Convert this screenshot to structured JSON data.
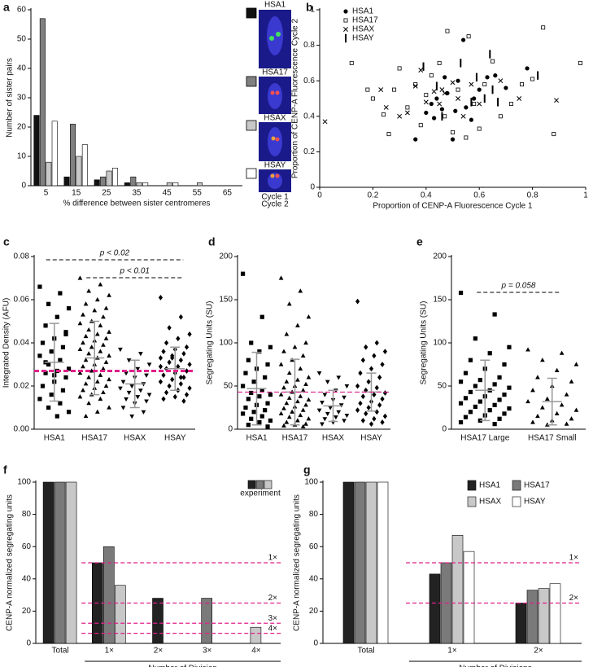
{
  "chart_data": [
    {
      "panel": "a",
      "type": "bar",
      "ylabel": "Number of sister pairs",
      "xlabel": "% difference between sister centromeres",
      "categories": [
        "5",
        "15",
        "25",
        "35",
        "45",
        "55",
        "65"
      ],
      "series": [
        {
          "name": "HSA1",
          "color": "#111111",
          "values": [
            24,
            3,
            2,
            1,
            0,
            0,
            0
          ]
        },
        {
          "name": "HSA17",
          "color": "#808080",
          "values": [
            57,
            21,
            3,
            3,
            0,
            0,
            0
          ]
        },
        {
          "name": "HSAX",
          "color": "#c8c8c8",
          "values": [
            8,
            10,
            5,
            1,
            1,
            1,
            0
          ]
        },
        {
          "name": "HSAY",
          "color": "#ffffff",
          "values": [
            22,
            14,
            6,
            1,
            1,
            0,
            0
          ]
        }
      ],
      "ylim": [
        0,
        60
      ],
      "yticks": [
        0,
        10,
        20,
        30,
        40,
        50,
        60
      ],
      "image_captions": [
        "Cycle 1",
        "Cycle 2"
      ],
      "caption_colors": [
        "#e03030",
        "#30b030"
      ]
    },
    {
      "panel": "b",
      "type": "scatter",
      "xlabel": "Proportion of CENP-A Fluorescence Cycle 1",
      "ylabel": "Proportion of CENP-A Fluorescence Cycle 2",
      "xlim": [
        0,
        1
      ],
      "ylim": [
        0,
        1
      ],
      "xticks": [
        0,
        0.2,
        0.4,
        0.6,
        0.8,
        1
      ],
      "yticks": [
        0,
        0.2,
        0.4,
        0.6,
        0.8,
        1
      ],
      "series": [
        {
          "name": "HSA1",
          "marker": "circle",
          "color": "#000000",
          "x": [
            0.36,
            0.4,
            0.42,
            0.44,
            0.46,
            0.48,
            0.5,
            0.52,
            0.54,
            0.55,
            0.57,
            0.6,
            0.63,
            0.66,
            0.7,
            0.78,
            0.47,
            0.43,
            0.58,
            0.51
          ],
          "y": [
            0.27,
            0.42,
            0.47,
            0.5,
            0.44,
            0.53,
            0.27,
            0.6,
            0.83,
            0.45,
            0.38,
            0.55,
            0.62,
            0.63,
            0.56,
            0.67,
            0.62,
            0.39,
            0.5,
            0.43
          ]
        },
        {
          "name": "HSA17",
          "marker": "open-square",
          "color": "#000000",
          "x": [
            0.12,
            0.18,
            0.2,
            0.24,
            0.26,
            0.28,
            0.3,
            0.33,
            0.36,
            0.38,
            0.4,
            0.42,
            0.45,
            0.47,
            0.5,
            0.52,
            0.55,
            0.56,
            0.58,
            0.6,
            0.62,
            0.65,
            0.68,
            0.72,
            0.76,
            0.8,
            0.84,
            0.88,
            0.98,
            0.48
          ],
          "y": [
            0.7,
            0.55,
            0.5,
            0.41,
            0.3,
            0.55,
            0.67,
            0.45,
            0.58,
            0.35,
            0.52,
            0.63,
            0.7,
            0.4,
            0.31,
            0.55,
            0.28,
            0.85,
            0.47,
            0.33,
            0.58,
            0.71,
            0.4,
            0.47,
            0.58,
            0.61,
            0.9,
            0.3,
            0.7,
            0.88
          ]
        },
        {
          "name": "HSAX",
          "marker": "x",
          "color": "#000000",
          "x": [
            0.02,
            0.23,
            0.25,
            0.3,
            0.33,
            0.36,
            0.38,
            0.4,
            0.43,
            0.45,
            0.47,
            0.5,
            0.52,
            0.54,
            0.57,
            0.6,
            0.68,
            0.75,
            0.89,
            0.46
          ],
          "y": [
            0.37,
            0.55,
            0.45,
            0.4,
            0.42,
            0.57,
            0.66,
            0.48,
            0.54,
            0.47,
            0.53,
            0.59,
            0.5,
            0.4,
            0.58,
            0.47,
            0.6,
            0.5,
            0.49,
            0.55
          ]
        },
        {
          "name": "HSAY",
          "marker": "bar",
          "color": "#000000",
          "x": [
            0.39,
            0.46,
            0.53,
            0.57,
            0.59,
            0.62,
            0.65,
            0.67,
            0.64,
            0.82,
            0.44
          ],
          "y": [
            0.68,
            0.4,
            0.7,
            0.48,
            0.62,
            0.5,
            0.55,
            0.48,
            0.75,
            0.63,
            0.57
          ]
        }
      ]
    },
    {
      "panel": "c",
      "type": "dotplot",
      "ylabel": "Integrated Density (AFU)",
      "categories": [
        "HSA1",
        "HSA17",
        "HSAX",
        "HSAY"
      ],
      "markers": [
        "square",
        "triangle",
        "triangle-down",
        "diamond"
      ],
      "values": [
        [
          0.066,
          0.063,
          0.058,
          0.056,
          0.052,
          0.048,
          0.045,
          0.042,
          0.04,
          0.038,
          0.036,
          0.034,
          0.032,
          0.03,
          0.028,
          0.027,
          0.026,
          0.024,
          0.022,
          0.02,
          0.018,
          0.016,
          0.014,
          0.012,
          0.01,
          0.008,
          0.006,
          0.031,
          0.044,
          0.025
        ],
        [
          0.07,
          0.067,
          0.064,
          0.062,
          0.06,
          0.058,
          0.056,
          0.055,
          0.053,
          0.052,
          0.05,
          0.049,
          0.048,
          0.046,
          0.045,
          0.044,
          0.043,
          0.042,
          0.041,
          0.04,
          0.039,
          0.038,
          0.037,
          0.036,
          0.035,
          0.034,
          0.033,
          0.032,
          0.031,
          0.03,
          0.029,
          0.028,
          0.027,
          0.026,
          0.025,
          0.024,
          0.023,
          0.022,
          0.021,
          0.02,
          0.019,
          0.018,
          0.017,
          0.016,
          0.015,
          0.014,
          0.012,
          0.01,
          0.008,
          0.006
        ],
        [
          0.037,
          0.035,
          0.032,
          0.03,
          0.028,
          0.026,
          0.025,
          0.024,
          0.022,
          0.021,
          0.02,
          0.019,
          0.018,
          0.017,
          0.016,
          0.015,
          0.014,
          0.013,
          0.012,
          0.01,
          0.008,
          0.006
        ],
        [
          0.061,
          0.052,
          0.047,
          0.044,
          0.042,
          0.04,
          0.038,
          0.037,
          0.036,
          0.035,
          0.034,
          0.033,
          0.032,
          0.031,
          0.03,
          0.029,
          0.028,
          0.027,
          0.026,
          0.025,
          0.024,
          0.023,
          0.022,
          0.021,
          0.02,
          0.019,
          0.018,
          0.017,
          0.016,
          0.015,
          0.014,
          0.013,
          0.033,
          0.029,
          0.024
        ]
      ],
      "mean": [
        0.031,
        0.033,
        0.021,
        0.028
      ],
      "sd": [
        0.018,
        0.017,
        0.011,
        0.01
      ],
      "ref_line": 0.027,
      "ref_color": "#e0208a",
      "ylim": [
        0,
        0.08
      ],
      "yticks": [
        {
          "value": 0,
          "label": "0.00"
        },
        {
          "value": 0.02,
          "label": "0.02"
        },
        {
          "value": 0.04,
          "label": "0.04"
        },
        {
          "value": 0.06,
          "label": "0.06"
        },
        {
          "value": 0.08,
          "label": "0.08"
        }
      ],
      "annotations": [
        "p < 0.02",
        "p < 0.01"
      ]
    },
    {
      "panel": "d",
      "type": "dotplot",
      "ylabel": "Segregating Units (SU)",
      "categories": [
        "HSA1",
        "HSA17",
        "HSAX",
        "HSAY"
      ],
      "markers": [
        "square",
        "triangle",
        "triangle-down",
        "diamond"
      ],
      "values": [
        [
          180,
          130,
          100,
          95,
          90,
          80,
          75,
          70,
          65,
          60,
          55,
          50,
          45,
          42,
          40,
          38,
          35,
          30,
          28,
          25,
          22,
          20,
          18,
          15,
          12,
          10,
          8,
          5,
          3
        ],
        [
          175,
          160,
          145,
          130,
          120,
          110,
          100,
          95,
          90,
          85,
          80,
          75,
          70,
          65,
          60,
          57,
          55,
          52,
          50,
          48,
          45,
          43,
          40,
          38,
          36,
          34,
          32,
          30,
          28,
          26,
          24,
          22,
          20,
          18,
          16,
          14,
          12,
          10,
          8,
          6,
          5,
          4,
          3
        ],
        [
          65,
          60,
          55,
          50,
          45,
          40,
          37,
          34,
          31,
          28,
          25,
          22,
          20,
          18,
          16,
          14,
          12,
          10,
          8,
          6
        ],
        [
          148,
          100,
          95,
          90,
          85,
          80,
          75,
          70,
          65,
          60,
          55,
          50,
          48,
          45,
          42,
          40,
          38,
          35,
          32,
          30,
          28,
          25,
          22,
          20,
          18,
          15,
          12,
          10,
          8,
          6
        ]
      ],
      "mean": [
        47,
        43,
        27,
        43
      ],
      "sd": [
        42,
        38,
        18,
        22
      ],
      "ref_line": 43,
      "ref_color": "#e0208a",
      "ylim": [
        0,
        200
      ],
      "yticks": [
        0,
        50,
        100,
        150,
        200
      ]
    },
    {
      "panel": "e",
      "type": "dotplot",
      "ylabel": "Segregating Units (SU)",
      "categories": [
        "HSA17 Large",
        "HSA17 Small"
      ],
      "markers": [
        "square",
        "triangle"
      ],
      "values": [
        [
          158,
          133,
          105,
          95,
          88,
          80,
          75,
          70,
          65,
          60,
          57,
          55,
          52,
          50,
          48,
          45,
          43,
          40,
          38,
          36,
          34,
          32,
          30,
          28,
          26,
          24,
          22,
          20,
          18,
          16,
          14,
          12,
          10,
          8,
          6
        ],
        [
          92,
          88,
          80,
          75,
          68,
          60,
          55,
          50,
          45,
          40,
          35,
          32,
          28,
          25,
          22,
          18,
          15,
          12,
          10,
          8,
          6,
          5
        ]
      ],
      "mean": [
        45,
        32
      ],
      "sd": [
        35,
        27
      ],
      "ylim": [
        0,
        200
      ],
      "yticks": [
        0,
        50,
        100,
        150,
        200
      ],
      "annotations": [
        "p = 0.058"
      ]
    },
    {
      "panel": "f",
      "type": "bar",
      "ylabel": "CENP-A normalized segregating units",
      "xlabel": "Number of Division",
      "categories": [
        "Total",
        "1×",
        "2×",
        "3×",
        "4×"
      ],
      "series": [
        {
          "color": "#222222",
          "values": [
            100,
            50,
            28,
            null,
            null
          ]
        },
        {
          "color": "#7a7a7a",
          "values": [
            100,
            60,
            null,
            28,
            null
          ]
        },
        {
          "color": "#c8c8c8",
          "values": [
            100,
            36,
            null,
            null,
            10
          ]
        }
      ],
      "legend_label": "experiment",
      "ylim": [
        0,
        100
      ],
      "yticks": [
        0,
        20,
        40,
        60,
        80,
        100
      ],
      "ref_lines": [
        {
          "value": 50,
          "label": "1×"
        },
        {
          "value": 25,
          "label": "2×"
        },
        {
          "value": 12.5,
          "label": "3×"
        },
        {
          "value": 6.25,
          "label": "4×"
        }
      ],
      "ref_color": "#e0208a"
    },
    {
      "panel": "g",
      "type": "bar",
      "ylabel": "CENP-A normalized segregating units",
      "xlabel": "Number of Divisions",
      "categories": [
        "Total",
        "1×",
        "2×"
      ],
      "category_colors": [
        "#000000",
        "#2a9a4a",
        "#d02828"
      ],
      "series": [
        {
          "name": "HSA1",
          "color": "#222222",
          "values": [
            100,
            43,
            25
          ]
        },
        {
          "name": "HSA17",
          "color": "#7a7a7a",
          "values": [
            100,
            50,
            33
          ]
        },
        {
          "name": "HSAX",
          "color": "#c8c8c8",
          "values": [
            100,
            67,
            34
          ]
        },
        {
          "name": "HSAY",
          "color": "#ffffff",
          "values": [
            100,
            57,
            37
          ]
        }
      ],
      "ylim": [
        0,
        100
      ],
      "yticks": [
        0,
        20,
        40,
        60,
        80,
        100
      ],
      "ref_lines": [
        {
          "value": 50,
          "label": "1×"
        },
        {
          "value": 25,
          "label": "2×"
        }
      ],
      "ref_color": "#e0208a"
    }
  ]
}
